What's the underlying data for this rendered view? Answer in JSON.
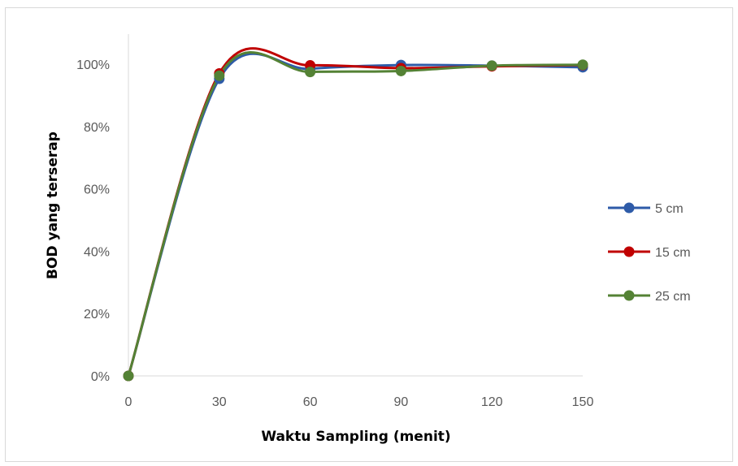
{
  "chart_data": {
    "type": "line",
    "smooth": true,
    "title": "",
    "xlabel": "Waktu Sampling (menit)",
    "ylabel": "BOD yang terserap",
    "x": [
      0,
      30,
      60,
      90,
      120,
      150
    ],
    "x_tick_labels": [
      "0",
      "30",
      "60",
      "90",
      "120",
      "150"
    ],
    "xlim": [
      0,
      150
    ],
    "ylim": [
      0,
      1.0
    ],
    "y_tick_labels": [
      "0%",
      "20%",
      "40%",
      "60%",
      "80%",
      "100%"
    ],
    "y_ticks": [
      0,
      0.2,
      0.4,
      0.6,
      0.8,
      1.0
    ],
    "grid": false,
    "legend_position": "right",
    "series": [
      {
        "name": "5 cm",
        "color": "#2e5ba8",
        "values": [
          0,
          0.953,
          0.985,
          0.997,
          0.995,
          0.99
        ]
      },
      {
        "name": "15 cm",
        "color": "#c00000",
        "values": [
          0,
          0.97,
          0.996,
          0.987,
          0.993,
          0.997
        ]
      },
      {
        "name": "25 cm",
        "color": "#548235",
        "values": [
          0,
          0.963,
          0.975,
          0.978,
          0.995,
          0.998
        ]
      }
    ]
  }
}
